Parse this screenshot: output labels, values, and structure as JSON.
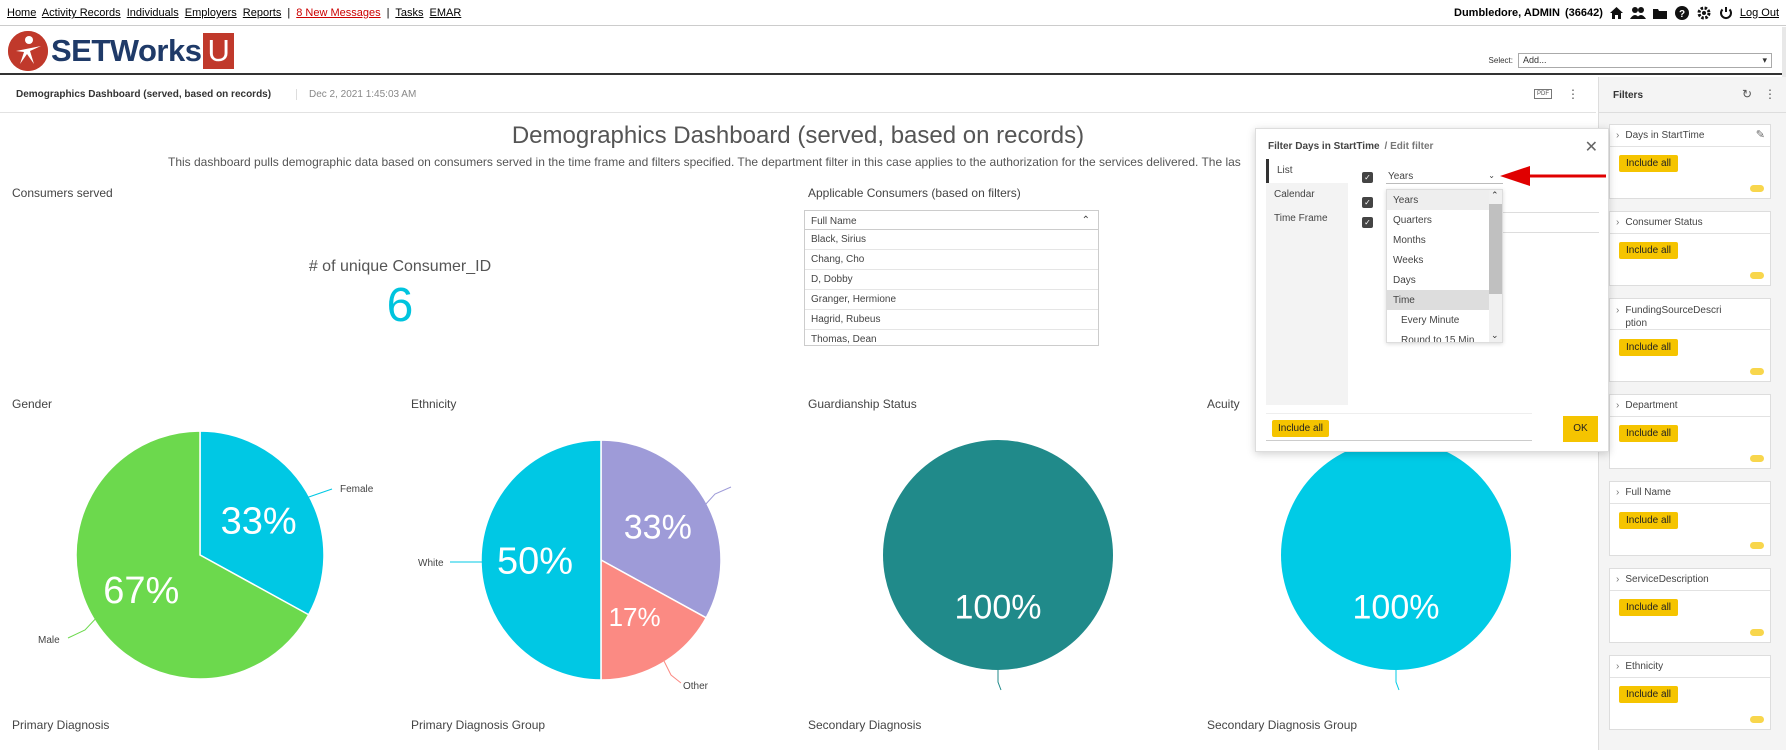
{
  "nav": {
    "links": [
      "Home",
      "Activity Records",
      "Individuals",
      "Employers",
      "Reports"
    ],
    "messages": "8 New Messages",
    "links2": [
      "Tasks",
      "EMAR"
    ],
    "user": "Dumbledore, ADMIN",
    "user_id": "(36642)",
    "logout": "Log Out"
  },
  "brand": {
    "name": "SETWorks",
    "suffix": "U"
  },
  "select": {
    "label": "Select:",
    "value": "Add..."
  },
  "dashboard": {
    "name": "Demographics Dashboard (served, based on records)",
    "timestamp": "Dec 2, 2021 1:45:03 AM",
    "pdf": "PDF",
    "title": "Demographics Dashboard (served, based on records)",
    "description": "This dashboard pulls demographic data based on consumers served in the time frame and filters specified. The department filter in this case applies to the authorization for the services delivered. The las"
  },
  "consumers": {
    "label": "Consumers served",
    "metric_label": "# of unique Consumer_ID",
    "metric_value": "6"
  },
  "applicable": {
    "label": "Applicable Consumers (based on filters)",
    "column": "Full Name",
    "rows": [
      "Black, Sirius",
      "Chang, Cho",
      "D, Dobby",
      "Granger, Hermione",
      "Hagrid, Rubeus",
      "Thomas, Dean"
    ]
  },
  "chart_labels": {
    "gender": "Gender",
    "ethnicity": "Ethnicity",
    "guardianship": "Guardianship Status",
    "acuity": "Acuity",
    "primary_dx": "Primary Diagnosis",
    "primary_dx_group": "Primary Diagnosis Group",
    "secondary_dx": "Secondary Diagnosis",
    "secondary_dx_group": "Secondary Diagnosis Group"
  },
  "chart_data": [
    {
      "type": "pie",
      "title": "Gender",
      "slices": [
        {
          "label": "Female",
          "value": 33,
          "color": "#00c8e4"
        },
        {
          "label": "Male",
          "value": 67,
          "color": "#6cd94d"
        }
      ]
    },
    {
      "type": "pie",
      "title": "Ethnicity",
      "slices": [
        {
          "label": "",
          "value": 33,
          "color": "#9e9bd8"
        },
        {
          "label": "Other",
          "value": 17,
          "color": "#fb8a83"
        },
        {
          "label": "White",
          "value": 50,
          "color": "#00c8e4"
        }
      ]
    },
    {
      "type": "pie",
      "title": "Guardianship Status",
      "slices": [
        {
          "label": "",
          "value": 100,
          "color": "#208a8a"
        }
      ]
    },
    {
      "type": "pie",
      "title": "Acuity",
      "slices": [
        {
          "label": "",
          "value": 100,
          "color": "#00cbe6"
        }
      ]
    }
  ],
  "filters_panel": {
    "title": "Filters",
    "items": [
      "Days in StartTime",
      "Consumer Status",
      "FundingSourceDescription",
      "Department",
      "Full Name",
      "ServiceDescription",
      "Ethnicity"
    ],
    "include_all": "Include all"
  },
  "dialog": {
    "title": "Filter Days in StartTime",
    "subtitle": "/ Edit filter",
    "tabs": [
      "List",
      "Calendar",
      "Time Frame"
    ],
    "selected": "Years",
    "options": [
      "Years",
      "Quarters",
      "Months",
      "Weeks",
      "Days",
      "Time",
      "Every Minute",
      "Round to 15 Min"
    ],
    "include_all": "Include all",
    "ok": "OK"
  },
  "colors": {
    "accent": "#f5c400",
    "cyan": "#00c8e4",
    "green": "#6cd94d",
    "teal": "#208a8a",
    "purple": "#9e9bd8",
    "salmon": "#fb8a83",
    "arrow": "#e00000"
  }
}
